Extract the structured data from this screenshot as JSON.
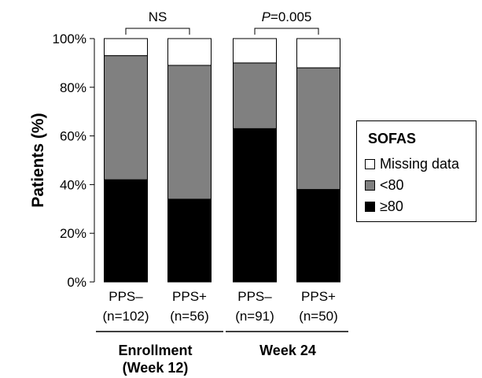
{
  "chart_data": {
    "type": "bar",
    "stacked": true,
    "ylabel": "Patients (%)",
    "ylim": [
      0,
      100
    ],
    "yticks": [
      "0%",
      "20%",
      "40%",
      "60%",
      "80%",
      "100%"
    ],
    "categories": [
      {
        "label": "PPS–",
        "n": "(n=102)",
        "group": "Enrollment\n(Week 12)"
      },
      {
        "label": "PPS+",
        "n": "(n=56)",
        "group": "Enrollment\n(Week 12)"
      },
      {
        "label": "PPS–",
        "n": "(n=91)",
        "group": "Week 24"
      },
      {
        "label": "PPS+",
        "n": "(n=50)",
        "group": "Week 24"
      }
    ],
    "groups": [
      {
        "line1": "Enrollment",
        "line2": "(Week 12)"
      },
      {
        "line1": "Week 24",
        "line2": ""
      }
    ],
    "series": [
      {
        "name": "≥80",
        "color": "#000000",
        "values": [
          42,
          34,
          63,
          38
        ]
      },
      {
        "name": "<80",
        "color": "#808080",
        "values": [
          51,
          55,
          27,
          50
        ]
      },
      {
        "name": "Missing data",
        "color": "#ffffff",
        "values": [
          7,
          11,
          10,
          12
        ]
      }
    ],
    "comparisons": [
      {
        "between": [
          0,
          1
        ],
        "label": "NS",
        "italic_prefix": ""
      },
      {
        "between": [
          2,
          3
        ],
        "label": "=0.005",
        "italic_prefix": "P"
      }
    ],
    "legend": {
      "title": "SOFAS",
      "position": "right"
    }
  }
}
